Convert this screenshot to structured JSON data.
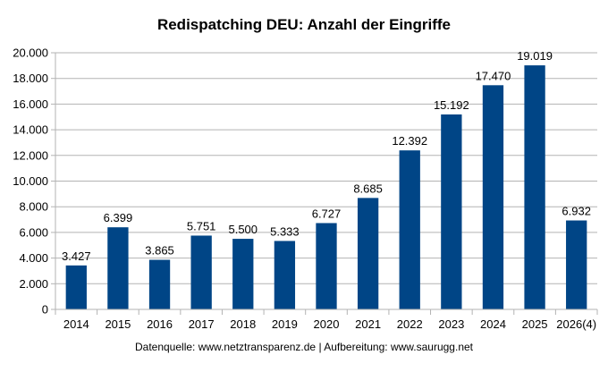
{
  "chart_data": {
    "type": "bar",
    "title": "Redispatching DEU: Anzahl der Eingriffe",
    "categories": [
      "2014",
      "2015",
      "2016",
      "2017",
      "2018",
      "2019",
      "2020",
      "2021",
      "2022",
      "2023",
      "2024",
      "2025",
      "2026(4)"
    ],
    "values": [
      3427,
      6399,
      3865,
      5751,
      5500,
      5333,
      6727,
      8685,
      12392,
      15192,
      17470,
      19019,
      6932
    ],
    "value_labels": [
      "3.427",
      "6.399",
      "3.865",
      "5.751",
      "5.500",
      "5.333",
      "6.727",
      "8.685",
      "12.392",
      "15.192",
      "17.470",
      "19.019",
      "6.932"
    ],
    "ylim": [
      0,
      20000
    ],
    "yticks": [
      0,
      2000,
      4000,
      6000,
      8000,
      10000,
      12000,
      14000,
      16000,
      18000,
      20000
    ],
    "ytick_labels": [
      "0",
      "2.000",
      "4.000",
      "6.000",
      "8.000",
      "10.000",
      "12.000",
      "14.000",
      "16.000",
      "18.000",
      "20.000"
    ],
    "grid": true,
    "bar_color": "#004586",
    "source": "Datenquelle: www.netztransparenz.de  | Aufbereitung: www.saurugg.net"
  }
}
